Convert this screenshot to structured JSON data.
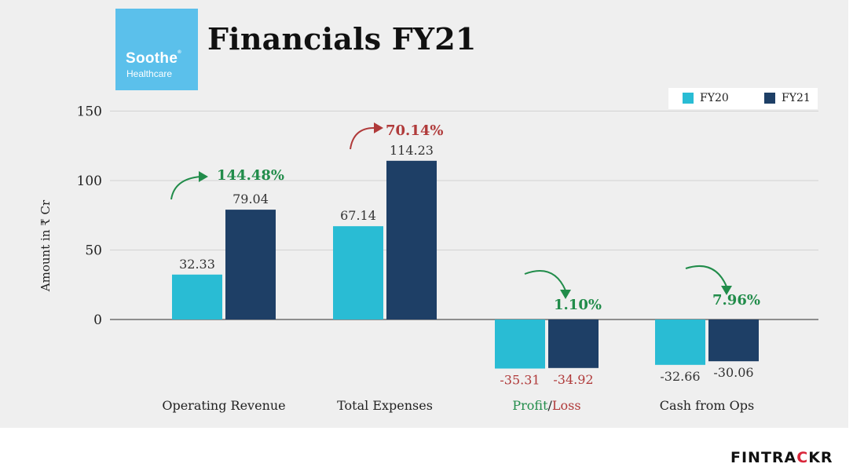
{
  "header": {
    "logo_brand": "Soothe",
    "logo_mark": "®",
    "logo_sub": "Healthcare",
    "title": "Financials FY21"
  },
  "footer": {
    "brand_part1": "FIN",
    "brand_part2": "TRA",
    "brand_part3": "C",
    "brand_part4": "KR"
  },
  "colors": {
    "fy20": "#29bcd4",
    "fy21": "#1e3f66",
    "growth_up": "#218c4a",
    "growth_down": "#b03a3a",
    "neg_label": "#b03a3a",
    "pos_label": "#333333"
  },
  "chart_data": {
    "type": "bar",
    "title": "Financials FY21",
    "ylabel": "Amount in ₹ Cr",
    "xlabel": "",
    "ylim": [
      -50,
      150
    ],
    "yticks": [
      0,
      50,
      100,
      150
    ],
    "legend": {
      "position": "top-right"
    },
    "categories": [
      "Operating Revenue",
      "Total Expenses",
      "Profit/Loss",
      "Cash from Ops"
    ],
    "series": [
      {
        "name": "FY20",
        "values": [
          32.33,
          67.14,
          -35.31,
          -32.66
        ]
      },
      {
        "name": "FY21",
        "values": [
          79.04,
          114.23,
          -34.92,
          -30.06
        ]
      }
    ],
    "value_labels": {
      "FY20": [
        "32.33",
        "67.14",
        "-35.31",
        "-32.66"
      ],
      "FY21": [
        "79.04",
        "114.23",
        "-34.92",
        "-30.06"
      ]
    },
    "annotations": [
      {
        "category": "Operating Revenue",
        "text": "144.48%",
        "direction": "up"
      },
      {
        "category": "Total Expenses",
        "text": "70.14%",
        "direction": "up"
      },
      {
        "category": "Profit/Loss",
        "text": "1.10%",
        "direction": "down"
      },
      {
        "category": "Cash from Ops",
        "text": "7.96%",
        "direction": "down"
      }
    ],
    "category_label_parts": {
      "Profit/Loss": [
        "Profit",
        "/",
        "Loss"
      ]
    }
  }
}
